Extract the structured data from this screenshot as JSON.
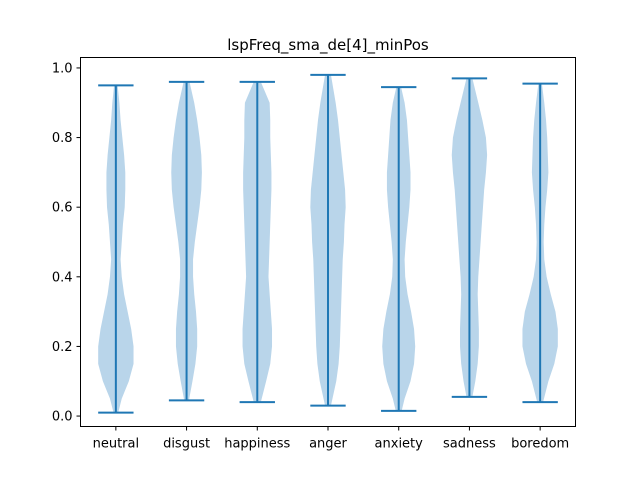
{
  "chart_data": {
    "type": "violin",
    "title": "lspFreq_sma_de[4]_minPos",
    "xlabel": "",
    "ylabel": "",
    "ylim": [
      -0.03,
      1.03
    ],
    "yticks": [
      "0.0",
      "0.2",
      "0.4",
      "0.6",
      "0.8",
      "1.0"
    ],
    "categories": [
      "neutral",
      "disgust",
      "happiness",
      "anger",
      "anxiety",
      "sadness",
      "boredom"
    ],
    "colors": {
      "body": "#b9d5ea",
      "line": "#1f77b4"
    },
    "series": [
      {
        "category": "neutral",
        "min": 0.01,
        "max": 0.95,
        "density": [
          [
            0.01,
            0.04
          ],
          [
            0.05,
            0.1
          ],
          [
            0.1,
            0.22
          ],
          [
            0.15,
            0.3
          ],
          [
            0.2,
            0.3
          ],
          [
            0.25,
            0.26
          ],
          [
            0.3,
            0.2
          ],
          [
            0.35,
            0.14
          ],
          [
            0.4,
            0.1
          ],
          [
            0.45,
            0.08
          ],
          [
            0.5,
            0.1
          ],
          [
            0.55,
            0.12
          ],
          [
            0.6,
            0.15
          ],
          [
            0.65,
            0.16
          ],
          [
            0.7,
            0.16
          ],
          [
            0.75,
            0.14
          ],
          [
            0.8,
            0.11
          ],
          [
            0.85,
            0.08
          ],
          [
            0.9,
            0.06
          ],
          [
            0.95,
            0.03
          ]
        ]
      },
      {
        "category": "disgust",
        "min": 0.045,
        "max": 0.96,
        "density": [
          [
            0.045,
            0.04
          ],
          [
            0.1,
            0.1
          ],
          [
            0.15,
            0.15
          ],
          [
            0.2,
            0.18
          ],
          [
            0.25,
            0.18
          ],
          [
            0.3,
            0.16
          ],
          [
            0.35,
            0.13
          ],
          [
            0.4,
            0.11
          ],
          [
            0.45,
            0.11
          ],
          [
            0.5,
            0.14
          ],
          [
            0.55,
            0.18
          ],
          [
            0.6,
            0.22
          ],
          [
            0.65,
            0.25
          ],
          [
            0.7,
            0.26
          ],
          [
            0.75,
            0.25
          ],
          [
            0.8,
            0.22
          ],
          [
            0.85,
            0.18
          ],
          [
            0.9,
            0.13
          ],
          [
            0.96,
            0.05
          ]
        ]
      },
      {
        "category": "happiness",
        "min": 0.04,
        "max": 0.96,
        "density": [
          [
            0.04,
            0.06
          ],
          [
            0.1,
            0.15
          ],
          [
            0.15,
            0.22
          ],
          [
            0.2,
            0.25
          ],
          [
            0.25,
            0.25
          ],
          [
            0.3,
            0.23
          ],
          [
            0.35,
            0.21
          ],
          [
            0.4,
            0.19
          ],
          [
            0.45,
            0.2
          ],
          [
            0.5,
            0.21
          ],
          [
            0.55,
            0.22
          ],
          [
            0.6,
            0.23
          ],
          [
            0.65,
            0.24
          ],
          [
            0.7,
            0.24
          ],
          [
            0.75,
            0.23
          ],
          [
            0.8,
            0.22
          ],
          [
            0.85,
            0.22
          ],
          [
            0.9,
            0.21
          ],
          [
            0.96,
            0.06
          ]
        ]
      },
      {
        "category": "anger",
        "min": 0.03,
        "max": 0.98,
        "density": [
          [
            0.03,
            0.05
          ],
          [
            0.1,
            0.14
          ],
          [
            0.15,
            0.18
          ],
          [
            0.2,
            0.2
          ],
          [
            0.25,
            0.21
          ],
          [
            0.3,
            0.22
          ],
          [
            0.35,
            0.23
          ],
          [
            0.4,
            0.24
          ],
          [
            0.45,
            0.25
          ],
          [
            0.5,
            0.27
          ],
          [
            0.55,
            0.28
          ],
          [
            0.6,
            0.3
          ],
          [
            0.65,
            0.29
          ],
          [
            0.7,
            0.26
          ],
          [
            0.75,
            0.23
          ],
          [
            0.8,
            0.2
          ],
          [
            0.85,
            0.17
          ],
          [
            0.9,
            0.13
          ],
          [
            0.98,
            0.05
          ]
        ]
      },
      {
        "category": "anxiety",
        "min": 0.015,
        "max": 0.945,
        "density": [
          [
            0.015,
            0.05
          ],
          [
            0.05,
            0.1
          ],
          [
            0.1,
            0.2
          ],
          [
            0.15,
            0.26
          ],
          [
            0.2,
            0.28
          ],
          [
            0.25,
            0.26
          ],
          [
            0.3,
            0.21
          ],
          [
            0.35,
            0.15
          ],
          [
            0.4,
            0.11
          ],
          [
            0.45,
            0.1
          ],
          [
            0.5,
            0.12
          ],
          [
            0.55,
            0.15
          ],
          [
            0.6,
            0.18
          ],
          [
            0.65,
            0.2
          ],
          [
            0.7,
            0.2
          ],
          [
            0.75,
            0.18
          ],
          [
            0.8,
            0.16
          ],
          [
            0.85,
            0.14
          ],
          [
            0.9,
            0.1
          ],
          [
            0.945,
            0.04
          ]
        ]
      },
      {
        "category": "sadness",
        "min": 0.055,
        "max": 0.97,
        "density": [
          [
            0.055,
            0.05
          ],
          [
            0.1,
            0.1
          ],
          [
            0.15,
            0.14
          ],
          [
            0.2,
            0.16
          ],
          [
            0.25,
            0.16
          ],
          [
            0.3,
            0.15
          ],
          [
            0.35,
            0.14
          ],
          [
            0.4,
            0.15
          ],
          [
            0.45,
            0.17
          ],
          [
            0.5,
            0.19
          ],
          [
            0.55,
            0.21
          ],
          [
            0.6,
            0.23
          ],
          [
            0.65,
            0.25
          ],
          [
            0.7,
            0.28
          ],
          [
            0.75,
            0.3
          ],
          [
            0.8,
            0.28
          ],
          [
            0.85,
            0.22
          ],
          [
            0.9,
            0.15
          ],
          [
            0.97,
            0.05
          ]
        ]
      },
      {
        "category": "boredom",
        "min": 0.04,
        "max": 0.955,
        "density": [
          [
            0.04,
            0.05
          ],
          [
            0.1,
            0.14
          ],
          [
            0.15,
            0.24
          ],
          [
            0.2,
            0.3
          ],
          [
            0.25,
            0.3
          ],
          [
            0.3,
            0.26
          ],
          [
            0.35,
            0.18
          ],
          [
            0.4,
            0.11
          ],
          [
            0.45,
            0.07
          ],
          [
            0.5,
            0.06
          ],
          [
            0.55,
            0.07
          ],
          [
            0.6,
            0.09
          ],
          [
            0.65,
            0.12
          ],
          [
            0.7,
            0.14
          ],
          [
            0.75,
            0.13
          ],
          [
            0.8,
            0.12
          ],
          [
            0.85,
            0.1
          ],
          [
            0.9,
            0.07
          ],
          [
            0.955,
            0.03
          ]
        ]
      }
    ]
  }
}
